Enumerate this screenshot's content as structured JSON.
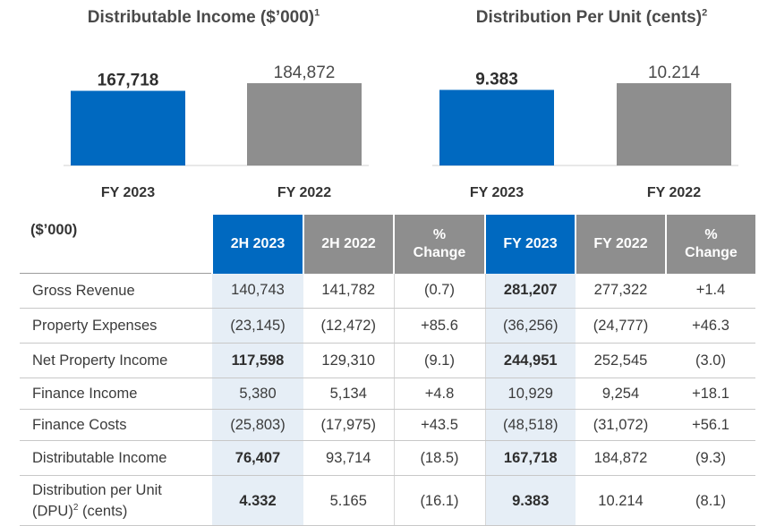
{
  "chart_data": [
    {
      "type": "bar",
      "title": "Distributable Income ($’000)",
      "title_sup": "1",
      "categories": [
        "FY 2023",
        "FY 2022"
      ],
      "values": [
        167718,
        184872
      ],
      "value_labels": [
        "167,718",
        "184,872"
      ],
      "bold_value": [
        true,
        false
      ],
      "colors": [
        "#0069c0",
        "#8e8e8e"
      ]
    },
    {
      "type": "bar",
      "title": "Distribution Per Unit (cents)",
      "title_sup": "2",
      "categories": [
        "FY 2023",
        "FY 2022"
      ],
      "values": [
        9.383,
        10.214
      ],
      "value_labels": [
        "9.383",
        "10.214"
      ],
      "bold_value": [
        true,
        false
      ],
      "colors": [
        "#0069c0",
        "#8e8e8e"
      ]
    }
  ],
  "table": {
    "corner": "($’000)",
    "headers": [
      {
        "line1": "2H 2023",
        "line2": "",
        "accent": true
      },
      {
        "line1": "2H 2022",
        "line2": "",
        "accent": false
      },
      {
        "line1": "%",
        "line2": "Change",
        "accent": false
      },
      {
        "line1": "FY 2023",
        "line2": "",
        "accent": true
      },
      {
        "line1": "FY 2022",
        "line2": "",
        "accent": false
      },
      {
        "line1": "%",
        "line2": "Change",
        "accent": false
      }
    ],
    "rows": [
      {
        "label": "Gross Revenue",
        "label2": "",
        "sup": "",
        "label3": "",
        "cells": [
          "140,743",
          "141,782",
          "(0.7)",
          "281,207",
          "277,322",
          "+1.4"
        ],
        "bold": [
          false,
          false,
          false,
          true,
          false,
          false
        ]
      },
      {
        "label": "Property Expenses",
        "label2": "",
        "sup": "",
        "label3": "",
        "cells": [
          "(23,145)",
          "(12,472)",
          "+85.6",
          "(36,256)",
          "(24,777)",
          "+46.3"
        ],
        "bold": [
          false,
          false,
          false,
          false,
          false,
          false
        ]
      },
      {
        "label": "Net Property Income",
        "label2": "",
        "sup": "",
        "label3": "",
        "cells": [
          "117,598",
          "129,310",
          "(9.1)",
          "244,951",
          "252,545",
          "(3.0)"
        ],
        "bold": [
          true,
          false,
          false,
          true,
          false,
          false
        ]
      },
      {
        "label": "Finance Income",
        "label2": "",
        "sup": "",
        "label3": "",
        "cells": [
          "5,380",
          "5,134",
          "+4.8",
          "10,929",
          "9,254",
          "+18.1"
        ],
        "bold": [
          false,
          false,
          false,
          false,
          false,
          false
        ]
      },
      {
        "label": "Finance Costs",
        "label2": "",
        "sup": "",
        "label3": "",
        "cells": [
          "(25,803)",
          "(17,975)",
          "+43.5",
          "(48,518)",
          "(31,072)",
          "+56.1"
        ],
        "bold": [
          false,
          false,
          false,
          false,
          false,
          false
        ]
      },
      {
        "label": "Distributable Income",
        "label2": "",
        "sup": "",
        "label3": "",
        "cells": [
          "76,407",
          "93,714",
          "(18.5)",
          "167,718",
          "184,872",
          "(9.3)"
        ],
        "bold": [
          true,
          false,
          false,
          true,
          false,
          false
        ]
      },
      {
        "label": "Distribution per Unit",
        "label2": "(DPU)",
        "sup": "2",
        "label3": " (cents)",
        "cells": [
          "4.332",
          "5.165",
          "(16.1)",
          "9.383",
          "10.214",
          "(8.1)"
        ],
        "bold": [
          true,
          false,
          false,
          true,
          false,
          false
        ]
      }
    ]
  }
}
